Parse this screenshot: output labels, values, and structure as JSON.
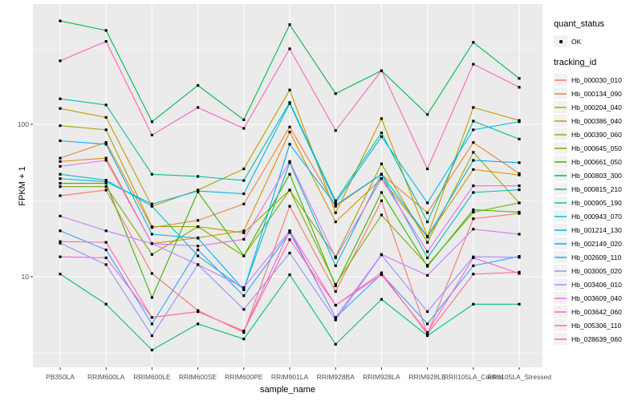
{
  "chart": {
    "legend": {
      "quant_status_title": "quant_status",
      "quant_status_items": [
        {
          "label": "OK",
          "marker": "black-point"
        }
      ],
      "tracking_id_title": "tracking_id"
    },
    "chart_data": {
      "type": "line",
      "title": "",
      "xlabel": "sample_name",
      "ylabel": "FPKM + 1",
      "y_scale": "log10",
      "y_ticks": [
        10,
        100
      ],
      "y_minor_ticks": [
        3.1623,
        31.623,
        316.23
      ],
      "ylim": [
        2.6,
        580
      ],
      "grid": "white major and minor on grey panel",
      "legend_position": "right",
      "panel_bg": "#EBEBEB",
      "grid_color": "#FFFFFF",
      "axis_text_color": "#4D4D4D",
      "marker_color": "#000000",
      "categories": [
        "PB350LA",
        "RRIM600LA",
        "RRIM600LE",
        "RRIM600SE",
        "RRIM600PE",
        "RRIM901LA",
        "RRIM928BA",
        "RRIM928LA",
        "RRIM928LE",
        "RRII105LA_Control",
        "RRII105LA_Stressed"
      ],
      "series": [
        {
          "name": "Hb_000030_010",
          "color": "#F8766D",
          "values": [
            34,
            37,
            10.5,
            6,
            4.3,
            29,
            8,
            31.5,
            4.2,
            24,
            26
          ]
        },
        {
          "name": "Hb_000134_090",
          "color": "#EA8331",
          "values": [
            60,
            76,
            21,
            23.4,
            30,
            96,
            29,
            47,
            26.3,
            76,
            47.5
          ]
        },
        {
          "name": "Hb_000204_040",
          "color": "#D89000",
          "values": [
            57,
            60,
            16.5,
            18,
            20,
            89,
            22.9,
            44,
            18.2,
            50.5,
            46.5
          ]
        },
        {
          "name": "Hb_000386_040",
          "color": "#C09B00",
          "values": [
            127,
            111,
            29,
            37,
            51,
            168,
            26.3,
            109,
            18.4,
            129,
            106
          ]
        },
        {
          "name": "Hb_000390_060",
          "color": "#A3A500",
          "values": [
            98,
            92,
            21.3,
            21.3,
            19.4,
            37,
            13.5,
            55,
            16.8,
            65.5,
            30.5
          ]
        },
        {
          "name": "Hb_000645_050",
          "color": "#7CAE00",
          "values": [
            39,
            39,
            14,
            21.3,
            13.7,
            37,
            8.9,
            25.4,
            11.9,
            26.5,
            30.5
          ]
        },
        {
          "name": "Hb_000661_050",
          "color": "#39B600",
          "values": [
            41,
            41,
            7.3,
            36,
            13.7,
            47,
            8.7,
            35.7,
            11.7,
            27.5,
            26.5
          ]
        },
        {
          "name": "Hb_000803_300",
          "color": "#00BB4E",
          "values": [
            477,
            413,
            104,
            180,
            107,
            451,
            159,
            225,
            116,
            345,
            200
          ]
        },
        {
          "name": "Hb_000815_210",
          "color": "#00BF7D",
          "values": [
            10.4,
            6.6,
            3.3,
            4.9,
            3.9,
            10.3,
            3.6,
            7.1,
            4.1,
            6.6,
            6.6
          ]
        },
        {
          "name": "Hb_000905_190",
          "color": "#00C1A3",
          "values": [
            147,
            134,
            47,
            45.5,
            42.8,
            139,
            31.5,
            88,
            22.9,
            105,
            80
          ]
        },
        {
          "name": "Hb_000943_070",
          "color": "#00BFC4",
          "values": [
            47,
            43,
            29,
            13.7,
            8.3,
            56,
            11.8,
            47,
            13.3,
            35.7,
            37.2
          ]
        },
        {
          "name": "Hb_001214_130",
          "color": "#00BAE0",
          "values": [
            44,
            42,
            30,
            36.5,
            35,
            137,
            30.5,
            83,
            30.5,
            92,
            104
          ]
        },
        {
          "name": "Hb_002149_020",
          "color": "#00B0F6",
          "values": [
            78,
            74,
            19,
            17.9,
            8.2,
            74,
            29.5,
            47,
            18.3,
            58,
            56
          ]
        },
        {
          "name": "Hb_002609_110",
          "color": "#35A2FF",
          "values": [
            20,
            15,
            4.9,
            15,
            7.5,
            19.5,
            5.4,
            10.4,
            4.9,
            11.8,
            13.6
          ]
        },
        {
          "name": "Hb_003005_020",
          "color": "#9590FF",
          "values": [
            16.6,
            12,
            4.1,
            12,
            6.1,
            14.3,
            5.2,
            13.9,
            5.9,
            13.5,
            13.4
          ]
        },
        {
          "name": "Hb_003406_010",
          "color": "#C77CFF",
          "values": [
            25,
            20,
            16.5,
            12,
            8.5,
            20,
            5.4,
            14,
            10.2,
            20.5,
            19
          ]
        },
        {
          "name": "Hb_003609_040",
          "color": "#E76BF3",
          "values": [
            53,
            58,
            16.5,
            15.9,
            17.6,
            57,
            13.3,
            44,
            14.6,
            39.5,
            39.5
          ]
        },
        {
          "name": "Hb_003642_060",
          "color": "#FA62DB",
          "values": [
            13.5,
            13.3,
            5.4,
            5.9,
            4.4,
            20,
            6.5,
            10.3,
            4.3,
            13.3,
            10.5
          ]
        },
        {
          "name": "Hb_005306_110",
          "color": "#FF62BC",
          "values": [
            261,
            350,
            85,
            129,
            94,
            313,
            91,
            225,
            51,
            248,
            175
          ]
        },
        {
          "name": "Hb_028639_060",
          "color": "#FF6A98",
          "values": [
            17,
            16.8,
            5.4,
            5.9,
            4.4,
            17.5,
            6.5,
            10.6,
            4.2,
            10.4,
            10.7
          ]
        }
      ]
    }
  }
}
